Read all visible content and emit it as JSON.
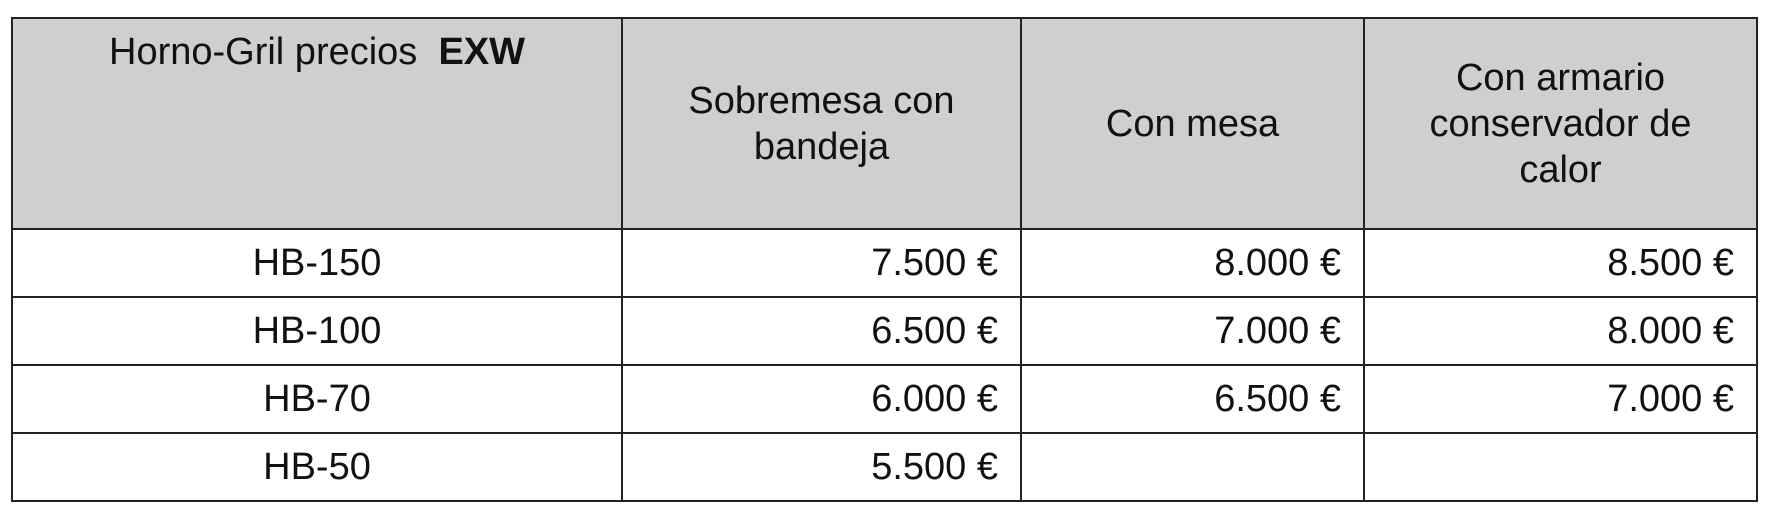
{
  "table": {
    "corner_label": "Horno-Gril precios",
    "corner_label_bold": "EXW",
    "columns": [
      "Sobremesa con bandeja",
      "Con mesa",
      "Con armario conservador de calor"
    ],
    "header_color": "#cfcfcf",
    "rows": [
      {
        "model": "HB-150",
        "values": [
          "7.500 €",
          "8.000 €",
          "8.500 €"
        ]
      },
      {
        "model": "HB-100",
        "values": [
          "6.500 €",
          "7.000 €",
          "8.000 €"
        ]
      },
      {
        "model": "HB-70",
        "values": [
          "6.000 €",
          "6.500 €",
          "7.000 €"
        ]
      },
      {
        "model": "HB-50",
        "values": [
          "5.500 €",
          "",
          ""
        ]
      }
    ]
  }
}
